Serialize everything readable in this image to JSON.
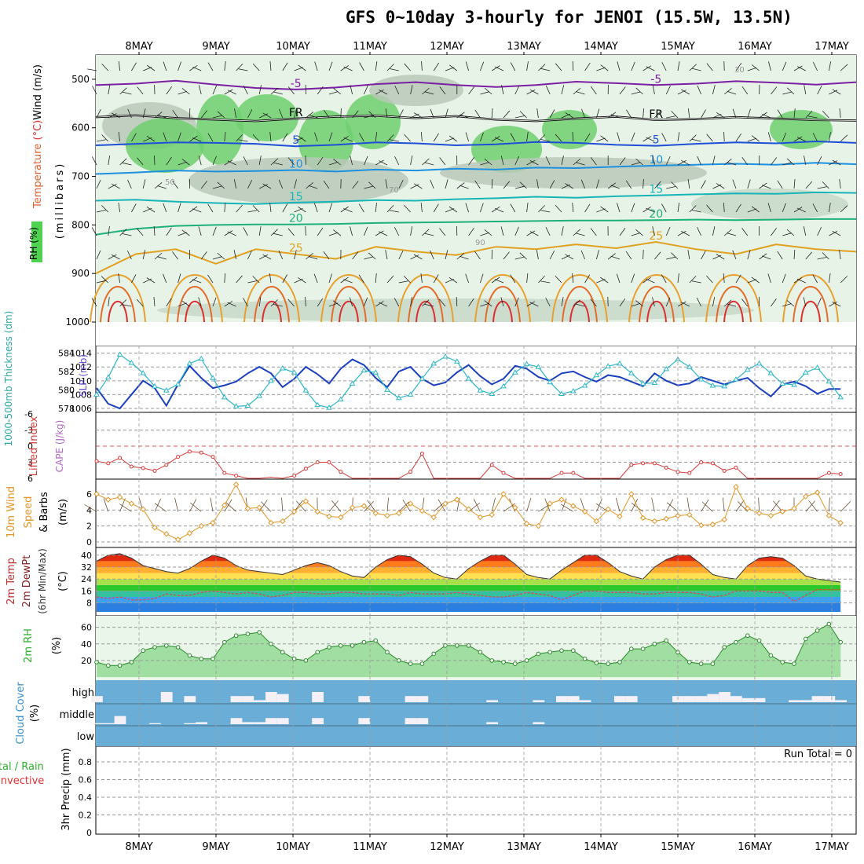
{
  "title": "GFS 0~10day 3-hourly for JENOI (15.5W, 13.5N)",
  "chart_data": {
    "type": "meteogram",
    "dates": [
      "8MAY",
      "9MAY",
      "10MAY",
      "11MAY",
      "12MAY",
      "13MAY",
      "14MAY",
      "15MAY",
      "16MAY",
      "17MAY"
    ],
    "panels": {
      "upper_air": {
        "label_rh": "RH (%)",
        "label_temperature": "Temperature",
        "label_temp_unit": "(°C)",
        "label_wind": "Wind (m/s)",
        "ylabel": "(millibars)",
        "yticks": [
          500,
          600,
          700,
          800,
          900,
          1000
        ],
        "ylim": [
          450,
          1000
        ],
        "rh_contour_labels": [
          "30",
          "50",
          "70",
          "90"
        ],
        "freezing_label": "FR",
        "temperature_isotherms": [
          {
            "value": -5,
            "label": "-5",
            "color": "#7b1fa2",
            "levels": [
              512,
              509,
              503,
              511,
              518,
              521,
              517,
              510,
              506,
              512,
              516,
              512,
              505,
              508,
              512,
              509,
              504,
              507,
              511,
              506
            ]
          },
          {
            "value": 0,
            "label": "FR",
            "color": "#000000",
            "levels": [
              578,
              574,
              580,
              583,
              586,
              581,
              577,
              575,
              580,
              576,
              583,
              586,
              581,
              577,
              584,
              582,
              578,
              581,
              584,
              585
            ]
          },
          {
            "value": 5,
            "label": "5",
            "color": "#1e4fd6",
            "levels": [
              636,
              633,
              630,
              631,
              633,
              638,
              635,
              630,
              632,
              636,
              634,
              629,
              631,
              635,
              637,
              633,
              630,
              632,
              628,
              631
            ]
          },
          {
            "value": 10,
            "label": "10",
            "color": "#1e90e0",
            "levels": [
              695,
              692,
              688,
              690,
              689,
              687,
              690,
              686,
              688,
              684,
              686,
              682,
              683,
              680,
              678,
              676,
              674,
              676,
              672,
              675
            ]
          },
          {
            "value": 15,
            "label": "15",
            "color": "#17b5b8",
            "levels": [
              750,
              748,
              752,
              755,
              757,
              754,
              752,
              749,
              750,
              747,
              745,
              742,
              744,
              741,
              739,
              737,
              735,
              736,
              733,
              734
            ]
          },
          {
            "value": 20,
            "label": "20",
            "color": "#1db07a",
            "levels": [
              820,
              808,
              802,
              800,
              799,
              799,
              798,
              796,
              795,
              794,
              793,
              792,
              791,
              791,
              790,
              789,
              790,
              789,
              788,
              788
            ]
          },
          {
            "value": 25,
            "label": "25",
            "color": "#e0a020",
            "levels": [
              900,
              860,
              850,
              880,
              850,
              860,
              870,
              845,
              855,
              862,
              845,
              850,
              840,
              848,
              835,
              850,
              860,
              840,
              850,
              855
            ]
          }
        ]
      },
      "thickness_slp": {
        "label_thickness": "1000-500mb Thickness (dm)",
        "label_slp": "SLP (mb)",
        "thickness_ticks": [
          578,
          580,
          582,
          584
        ],
        "slp_ticks": [
          1006,
          1008,
          1010,
          1012,
          1014
        ],
        "thickness_color": "#1a3fbf",
        "slp_color": "#2cb7c9",
        "thickness": [
          580.2,
          578.5,
          578.0,
          579.5,
          581.0,
          580.2,
          578.3,
          580.6,
          582.6,
          581.3,
          580.2,
          580.5,
          580.9,
          581.8,
          582.5,
          581.8,
          580.3,
          581.2,
          582.5,
          581.7,
          580.7,
          582.3,
          583.3,
          582.7,
          581.3,
          580.3,
          582.0,
          582.5,
          581.2,
          580.5,
          580.8,
          581.9,
          582.7,
          581.5,
          580.6,
          581.2,
          582.6,
          582.3,
          581.4,
          581.0,
          581.8,
          582.0,
          581.4,
          580.9,
          581.6,
          581.4,
          580.9,
          580.4,
          581.8,
          581.0,
          580.5,
          580.7,
          581.4,
          581.0,
          580.6,
          581.0,
          581.3,
          580.2,
          579.3,
          580.6,
          580.9,
          580.4,
          579.6,
          580.1,
          580.1
        ],
        "slp": [
          1008.0,
          1010.5,
          1013.8,
          1012.6,
          1011.1,
          1009.2,
          1008.6,
          1009.5,
          1012.5,
          1013.2,
          1010.4,
          1007.6,
          1006.3,
          1006.4,
          1007.8,
          1010.0,
          1011.8,
          1011.2,
          1008.6,
          1006.5,
          1006.1,
          1007.3,
          1009.6,
          1011.5,
          1011.2,
          1008.7,
          1007.5,
          1008.0,
          1010.3,
          1012.5,
          1013.5,
          1012.8,
          1010.3,
          1008.6,
          1008.1,
          1009.2,
          1011.2,
          1012.4,
          1012.0,
          1009.8,
          1008.1,
          1008.5,
          1009.3,
          1010.8,
          1012.1,
          1012.5,
          1011.1,
          1009.6,
          1009.7,
          1011.7,
          1013.1,
          1012.0,
          1010.2,
          1009.3,
          1009.2,
          1010.2,
          1011.6,
          1012.5,
          1011.1,
          1009.6,
          1009.4,
          1011.2,
          1011.9,
          1009.9,
          1007.6
        ]
      },
      "stability": {
        "label_li": "Lifted Index",
        "label_cape": "CAPE (J/kg)",
        "yticks": [
          -6,
          -3,
          0,
          3,
          6
        ],
        "li_color": "#d83a3a",
        "lifted_index": [
          2.8,
          3.2,
          2.2,
          3.8,
          4.1,
          4.6,
          3.5,
          2.0,
          1.0,
          1.2,
          2.0,
          5.0,
          5.5,
          6.0,
          6.0,
          5.8,
          6.0,
          5.5,
          4.2,
          3.0,
          3.0,
          4.8,
          6.0,
          6.0,
          6.0,
          6.0,
          6.0,
          4.8,
          1.4,
          6.0,
          6.0,
          6.0,
          6.0,
          6.0,
          3.5,
          5.0,
          6.0,
          6.0,
          6.0,
          6.0,
          5.0,
          5.0,
          6.0,
          6.0,
          6.0,
          6.0,
          3.5,
          3.2,
          3.2,
          4.0,
          4.8,
          5.0,
          3.0,
          3.2,
          4.6,
          4.0,
          6.0,
          6.0,
          6.0,
          6.0,
          6.0,
          6.0,
          6.0,
          5.0,
          5.2
        ]
      },
      "wind10m": {
        "label_wind": "10m Wind",
        "label_speed": "Speed",
        "label_barbs": "& Barbs",
        "unit": "(m/s)",
        "yticks": [
          0,
          2,
          4,
          6
        ],
        "color": "#e49526",
        "speed": [
          6.0,
          5.3,
          5.6,
          4.8,
          4.1,
          1.8,
          1.0,
          0.3,
          1.1,
          2.0,
          2.4,
          4.6,
          7.2,
          4.2,
          4.3,
          2.4,
          2.6,
          3.8,
          5.1,
          3.8,
          3.2,
          3.1,
          4.3,
          4.5,
          3.6,
          3.3,
          3.6,
          4.8,
          3.9,
          3.1,
          4.8,
          5.3,
          4.1,
          3.1,
          3.4,
          6.0,
          4.3,
          2.3,
          2.0,
          4.8,
          5.3,
          4.5,
          3.8,
          2.6,
          4.1,
          3.2,
          6.0,
          3.0,
          2.6,
          2.9,
          3.3,
          3.4,
          2.1,
          2.2,
          2.8,
          6.9,
          4.2,
          3.6,
          3.3,
          3.8,
          4.2,
          5.7,
          6.2,
          3.3,
          2.4
        ]
      },
      "temp2m": {
        "label_temp": "2m Temp",
        "label_dewpt": "2m DewPt",
        "label_minmax": "(6hr Min/Max)",
        "unit": "(°C)",
        "yticks": [
          8,
          16,
          24,
          32,
          40
        ],
        "temperature": [
          36,
          40,
          41,
          38,
          33,
          31,
          29,
          28,
          31,
          36,
          40,
          38,
          33,
          30,
          29,
          28,
          27,
          30,
          33,
          35,
          33,
          29,
          26,
          25,
          32,
          37,
          40,
          39,
          34,
          28,
          25,
          24,
          31,
          36,
          40,
          40,
          34,
          27,
          25,
          24,
          30,
          35,
          40,
          40,
          35,
          29,
          26,
          24,
          32,
          37,
          40,
          40,
          34,
          27,
          25,
          24,
          33,
          38,
          39,
          38,
          33,
          26,
          24,
          23,
          22
        ],
        "dewpoint": [
          12,
          11,
          12,
          10,
          10,
          11,
          14,
          13,
          13,
          15,
          16,
          15,
          14,
          15,
          14,
          12,
          13,
          15,
          15,
          14,
          14,
          15,
          15,
          14,
          14,
          14,
          13,
          15,
          14,
          14,
          14,
          15,
          14,
          13,
          12,
          12,
          13,
          15,
          14,
          13,
          10,
          13,
          16,
          16,
          15,
          15,
          15,
          14,
          14,
          15,
          15,
          15,
          14,
          12,
          13,
          16,
          16,
          16,
          15,
          15,
          9,
          13,
          17,
          17,
          17
        ]
      },
      "rh2m": {
        "label_rh": "2m RH",
        "unit": "(%)",
        "yticks": [
          20,
          40,
          60
        ],
        "values": [
          18,
          14,
          14,
          18,
          32,
          36,
          38,
          36,
          26,
          22,
          22,
          42,
          50,
          52,
          54,
          40,
          30,
          22,
          20,
          30,
          36,
          38,
          38,
          42,
          44,
          30,
          20,
          16,
          16,
          28,
          38,
          38,
          38,
          30,
          20,
          18,
          16,
          20,
          28,
          30,
          32,
          32,
          22,
          17,
          16,
          18,
          34,
          34,
          40,
          44,
          30,
          18,
          16,
          16,
          36,
          42,
          50,
          44,
          26,
          18,
          16,
          46,
          56,
          64,
          42
        ]
      },
      "cloud": {
        "label": "Cloud Cover",
        "unit": "(%)",
        "levels": [
          "high",
          "middle",
          "low"
        ],
        "high": [
          30,
          0,
          0,
          0,
          0,
          0,
          50,
          0,
          30,
          0,
          0,
          0,
          30,
          30,
          10,
          50,
          40,
          0,
          0,
          50,
          0,
          0,
          0,
          30,
          0,
          0,
          0,
          30,
          30,
          0,
          0,
          0,
          0,
          0,
          10,
          0,
          0,
          0,
          10,
          0,
          30,
          30,
          10,
          0,
          0,
          30,
          30,
          0,
          0,
          0,
          30,
          30,
          30,
          40,
          50,
          30,
          20,
          20,
          0,
          0,
          10,
          10,
          30,
          30,
          10
        ],
        "middle": [
          5,
          5,
          40,
          0,
          0,
          5,
          0,
          0,
          5,
          10,
          0,
          0,
          30,
          10,
          10,
          30,
          30,
          0,
          0,
          30,
          0,
          0,
          0,
          30,
          0,
          0,
          0,
          30,
          30,
          0,
          0,
          0,
          0,
          0,
          10,
          0,
          0,
          0,
          10,
          0,
          0,
          0,
          0,
          0,
          0,
          0,
          0,
          0,
          0,
          0,
          0,
          0,
          0,
          0,
          0,
          0,
          0,
          0,
          0,
          0,
          0,
          0,
          0,
          0,
          0
        ],
        "low": [
          0,
          0,
          0,
          0,
          0,
          0,
          0,
          0,
          0,
          0,
          0,
          0,
          0,
          0,
          0,
          0,
          0,
          0,
          0,
          0,
          0,
          0,
          0,
          0,
          0,
          0,
          0,
          0,
          0,
          0,
          0,
          0,
          0,
          0,
          0,
          0,
          0,
          0,
          0,
          0,
          0,
          0,
          0,
          0,
          0,
          0,
          0,
          0,
          0,
          0,
          0,
          0,
          0,
          0,
          0,
          0,
          0,
          0,
          0,
          0,
          0,
          0,
          0,
          0,
          0
        ]
      },
      "precip": {
        "label_total": "Total / Rain",
        "label_conv": "Convective",
        "ylabel": "3hr Precip (mm)",
        "yticks": [
          "0",
          "0.2",
          "0.4",
          "0.6",
          "0.8"
        ],
        "run_total_label": "Run Total = 0",
        "values": []
      }
    }
  }
}
